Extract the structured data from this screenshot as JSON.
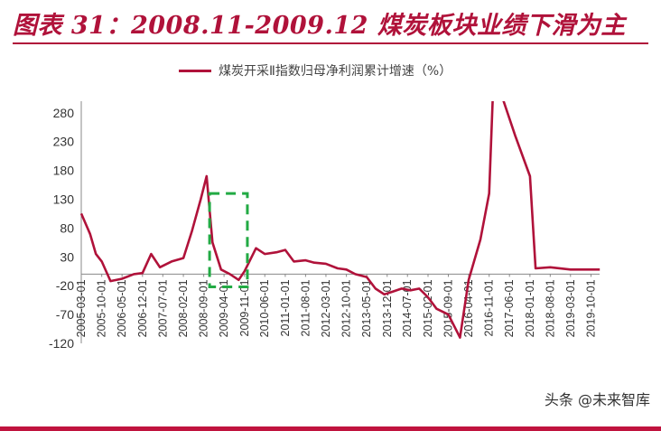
{
  "header": {
    "title": "图表 31：2008.11-2009.12 煤炭板块业绩下滑为主"
  },
  "watermark": "头条 @未来智库",
  "colors": {
    "accent": "#B0123A",
    "series": "#B0123A",
    "highlight": "#22AA44",
    "axis": "#888888"
  },
  "chart_data": {
    "type": "line",
    "xlabel": "",
    "ylabel": "",
    "ylim": [
      -120,
      310
    ],
    "yticks": [
      280,
      230,
      180,
      130,
      80,
      30,
      -20,
      -70,
      -120
    ],
    "xticks": [
      "2005-03-01",
      "2005-10-01",
      "2006-05-01",
      "2006-12-01",
      "2007-07-01",
      "2008-02-01",
      "2008-09-01",
      "2009-04-01",
      "2009-11-01",
      "2010-06-01",
      "2011-01-01",
      "2011-08-01",
      "2012-03-01",
      "2012-10-01",
      "2013-05-01",
      "2013-12-01",
      "2014-07-01",
      "2015-02-01",
      "2015-09-01",
      "2016-04-01",
      "2016-11-01",
      "2017-06-01",
      "2018-01-01",
      "2018-08-01",
      "2019-03-01",
      "2019-10-01"
    ],
    "legend": {
      "position": "top"
    },
    "grid": false,
    "highlight": {
      "x_start": "2008-11-01",
      "x_end": "2009-12-01",
      "y_low": -22,
      "y_high": 140
    },
    "series": [
      {
        "name": "煤炭开采Ⅱ指数归母净利润累计增速（%）",
        "points": [
          [
            "2005-03-01",
            105
          ],
          [
            "2005-06-01",
            70
          ],
          [
            "2005-08-01",
            35
          ],
          [
            "2005-10-01",
            22
          ],
          [
            "2006-01-01",
            -12
          ],
          [
            "2006-05-01",
            -8
          ],
          [
            "2006-09-01",
            0
          ],
          [
            "2006-12-01",
            2
          ],
          [
            "2007-03-01",
            35
          ],
          [
            "2007-06-01",
            12
          ],
          [
            "2007-10-01",
            22
          ],
          [
            "2008-02-01",
            28
          ],
          [
            "2008-05-01",
            75
          ],
          [
            "2008-08-01",
            130
          ],
          [
            "2008-10-01",
            170
          ],
          [
            "2008-12-01",
            55
          ],
          [
            "2009-03-01",
            8
          ],
          [
            "2009-06-01",
            0
          ],
          [
            "2009-09-01",
            -10
          ],
          [
            "2009-11-01",
            5
          ],
          [
            "2010-03-01",
            45
          ],
          [
            "2010-06-01",
            35
          ],
          [
            "2010-10-01",
            38
          ],
          [
            "2011-01-01",
            42
          ],
          [
            "2011-04-01",
            22
          ],
          [
            "2011-08-01",
            24
          ],
          [
            "2011-11-01",
            20
          ],
          [
            "2012-03-01",
            18
          ],
          [
            "2012-07-01",
            10
          ],
          [
            "2012-10-01",
            8
          ],
          [
            "2013-01-01",
            0
          ],
          [
            "2013-05-01",
            -5
          ],
          [
            "2013-08-01",
            -25
          ],
          [
            "2013-11-01",
            -35
          ],
          [
            "2014-02-01",
            -30
          ],
          [
            "2014-05-01",
            -25
          ],
          [
            "2014-08-01",
            -28
          ],
          [
            "2014-11-01",
            -25
          ],
          [
            "2015-02-01",
            -40
          ],
          [
            "2015-05-01",
            -60
          ],
          [
            "2015-09-01",
            -70
          ],
          [
            "2016-01-01",
            -110
          ],
          [
            "2016-04-01",
            -10
          ],
          [
            "2016-08-01",
            60
          ],
          [
            "2016-11-01",
            140
          ],
          [
            "2017-01-01",
            410
          ],
          [
            "2017-04-01",
            300
          ],
          [
            "2017-08-01",
            240
          ],
          [
            "2018-01-01",
            170
          ],
          [
            "2018-03-01",
            10
          ],
          [
            "2018-08-01",
            12
          ],
          [
            "2019-03-01",
            8
          ],
          [
            "2019-10-01",
            8
          ],
          [
            "2020-01-01",
            8
          ]
        ]
      }
    ]
  }
}
